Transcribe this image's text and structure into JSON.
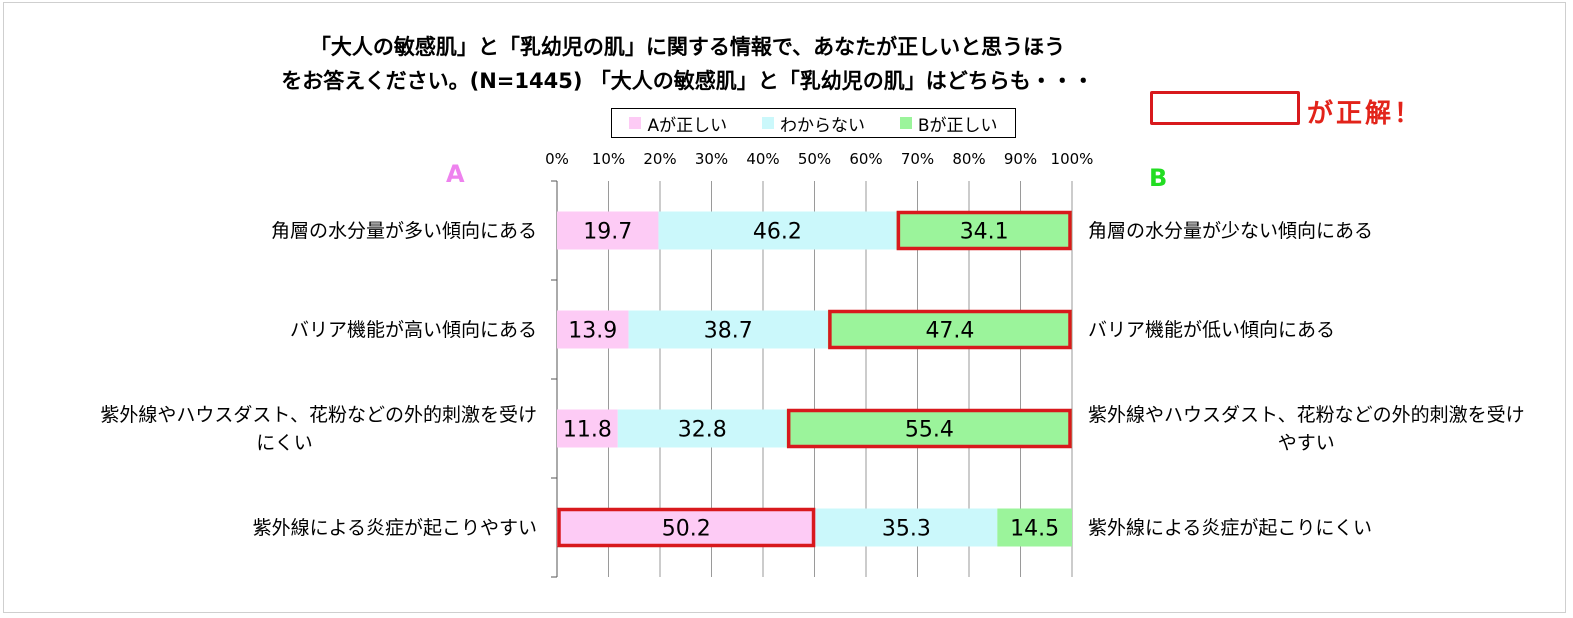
{
  "title_line1": "「大人の敏感肌」と「乳幼児の肌」に関する情報で、あなたが正しいと思うほう",
  "title_line2": "をお答えください。(N=1445) 「大人の敏感肌」と「乳幼児の肌」はどちらも・・・",
  "answer_note": "が正解！",
  "head_a": "A",
  "head_b": "B",
  "legend": [
    {
      "label": "Aが正しい",
      "color": "#fdcbf5"
    },
    {
      "label": "わからない",
      "color": "#cbf8fb"
    },
    {
      "label": "Bが正しい",
      "color": "#9bf49b"
    }
  ],
  "colors": {
    "highlight": "#d8191d",
    "grid": "#9a9a9a"
  },
  "chart_data": {
    "type": "bar",
    "orientation": "horizontal-stacked-100",
    "xlim": [
      0,
      100
    ],
    "ticks": [
      "0%",
      "10%",
      "20%",
      "30%",
      "40%",
      "50%",
      "60%",
      "70%",
      "80%",
      "90%",
      "100%"
    ],
    "categories_a": [
      "角層の水分量が多い傾向にある",
      "バリア機能が高い傾向にある",
      "紫外線やハウスダスト、花粉などの外的刺激を受け\nにくい",
      "紫外線による炎症が起こりやすい"
    ],
    "categories_b": [
      "角層の水分量が少ない傾向にある",
      "バリア機能が低い傾向にある",
      "紫外線やハウスダスト、花粉などの外的刺激を受け\nやすい",
      "紫外線による炎症が起こりにくい"
    ],
    "series": [
      {
        "name": "Aが正しい",
        "values": [
          19.7,
          13.9,
          11.8,
          50.2
        ]
      },
      {
        "name": "わからない",
        "values": [
          46.2,
          38.7,
          32.8,
          35.3
        ]
      },
      {
        "name": "Bが正しい",
        "values": [
          34.1,
          47.4,
          55.4,
          14.5
        ]
      }
    ],
    "correct_answer": [
      "B",
      "B",
      "B",
      "A"
    ]
  }
}
